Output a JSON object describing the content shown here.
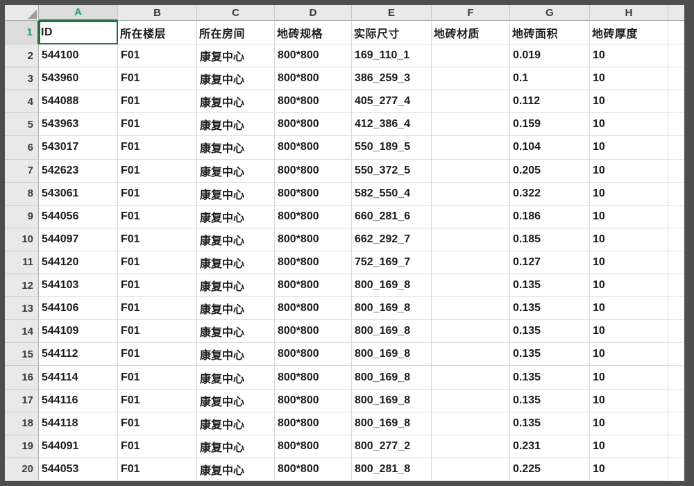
{
  "app": {
    "type": "spreadsheet-grid-view"
  },
  "colors": {
    "selection_green": "#217346",
    "selected_header_text": "#21a366",
    "indicator_green": "#2fa24c",
    "header_bg": "#e9e9e9",
    "selected_header_bg": "#dcdcdc",
    "gridline": "#d9d9d9",
    "frame": "#4e4e4e"
  },
  "sheet": {
    "column_letters": [
      "A",
      "B",
      "C",
      "D",
      "E",
      "F",
      "G",
      "H"
    ],
    "selected_column": "A",
    "active_cell": "A1",
    "indicator_column_indexes": [
      0,
      2,
      3,
      6,
      7
    ],
    "header_row": {
      "number": "1",
      "cells": [
        "ID",
        "所在楼层",
        "所在房间",
        "地砖规格",
        "实际尺寸",
        "地砖材质",
        "地砖面积",
        "地砖厚度"
      ]
    },
    "rows": [
      {
        "number": "2",
        "cells": [
          "544100",
          "F01",
          "康复中心",
          "800*800",
          "169_110_1",
          "",
          "0.019",
          "10"
        ]
      },
      {
        "number": "3",
        "cells": [
          "543960",
          "F01",
          "康复中心",
          "800*800",
          "386_259_3",
          "",
          "0.1",
          "10"
        ]
      },
      {
        "number": "4",
        "cells": [
          "544088",
          "F01",
          "康复中心",
          "800*800",
          "405_277_4",
          "",
          "0.112",
          "10"
        ]
      },
      {
        "number": "5",
        "cells": [
          "543963",
          "F01",
          "康复中心",
          "800*800",
          "412_386_4",
          "",
          "0.159",
          "10"
        ]
      },
      {
        "number": "6",
        "cells": [
          "543017",
          "F01",
          "康复中心",
          "800*800",
          "550_189_5",
          "",
          "0.104",
          "10"
        ]
      },
      {
        "number": "7",
        "cells": [
          "542623",
          "F01",
          "康复中心",
          "800*800",
          "550_372_5",
          "",
          "0.205",
          "10"
        ]
      },
      {
        "number": "8",
        "cells": [
          "543061",
          "F01",
          "康复中心",
          "800*800",
          "582_550_4",
          "",
          "0.322",
          "10"
        ]
      },
      {
        "number": "9",
        "cells": [
          "544056",
          "F01",
          "康复中心",
          "800*800",
          "660_281_6",
          "",
          "0.186",
          "10"
        ]
      },
      {
        "number": "10",
        "cells": [
          "544097",
          "F01",
          "康复中心",
          "800*800",
          "662_292_7",
          "",
          "0.185",
          "10"
        ]
      },
      {
        "number": "11",
        "cells": [
          "544120",
          "F01",
          "康复中心",
          "800*800",
          "752_169_7",
          "",
          "0.127",
          "10"
        ]
      },
      {
        "number": "12",
        "cells": [
          "544103",
          "F01",
          "康复中心",
          "800*800",
          "800_169_8",
          "",
          "0.135",
          "10"
        ]
      },
      {
        "number": "13",
        "cells": [
          "544106",
          "F01",
          "康复中心",
          "800*800",
          "800_169_8",
          "",
          "0.135",
          "10"
        ]
      },
      {
        "number": "14",
        "cells": [
          "544109",
          "F01",
          "康复中心",
          "800*800",
          "800_169_8",
          "",
          "0.135",
          "10"
        ]
      },
      {
        "number": "15",
        "cells": [
          "544112",
          "F01",
          "康复中心",
          "800*800",
          "800_169_8",
          "",
          "0.135",
          "10"
        ]
      },
      {
        "number": "16",
        "cells": [
          "544114",
          "F01",
          "康复中心",
          "800*800",
          "800_169_8",
          "",
          "0.135",
          "10"
        ]
      },
      {
        "number": "17",
        "cells": [
          "544116",
          "F01",
          "康复中心",
          "800*800",
          "800_169_8",
          "",
          "0.135",
          "10"
        ]
      },
      {
        "number": "18",
        "cells": [
          "544118",
          "F01",
          "康复中心",
          "800*800",
          "800_169_8",
          "",
          "0.135",
          "10"
        ]
      },
      {
        "number": "19",
        "cells": [
          "544091",
          "F01",
          "康复中心",
          "800*800",
          "800_277_2",
          "",
          "0.231",
          "10"
        ]
      },
      {
        "number": "20",
        "cells": [
          "544053",
          "F01",
          "康复中心",
          "800*800",
          "800_281_8",
          "",
          "0.225",
          "10"
        ]
      }
    ]
  }
}
